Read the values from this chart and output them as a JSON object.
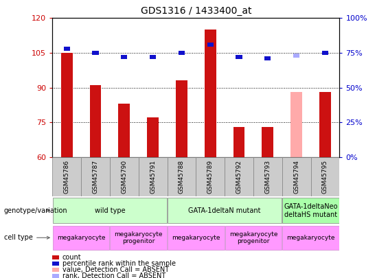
{
  "title": "GDS1316 / 1433400_at",
  "samples": [
    "GSM45786",
    "GSM45787",
    "GSM45790",
    "GSM45791",
    "GSM45788",
    "GSM45789",
    "GSM45792",
    "GSM45793",
    "GSM45794",
    "GSM45795"
  ],
  "count_values": [
    105,
    91,
    83,
    77,
    93,
    115,
    73,
    73,
    null,
    88
  ],
  "count_absent_values": [
    null,
    null,
    null,
    null,
    null,
    null,
    null,
    null,
    88,
    null
  ],
  "percentile_values": [
    78,
    75,
    72,
    72,
    75,
    81,
    72,
    71,
    null,
    75
  ],
  "percentile_absent_values": [
    null,
    null,
    null,
    null,
    null,
    null,
    null,
    null,
    73,
    null
  ],
  "ylim_left": [
    60,
    120
  ],
  "ylim_right": [
    0,
    100
  ],
  "yticks_left": [
    60,
    75,
    90,
    105,
    120
  ],
  "yticks_right": [
    0,
    25,
    50,
    75,
    100
  ],
  "bar_color_red": "#cc1111",
  "bar_color_absent": "#ffaaaa",
  "percentile_color": "#1111cc",
  "percentile_color_absent": "#aaaaff",
  "bar_width": 0.4,
  "geno_groups": [
    {
      "label": "wild type",
      "start": 0,
      "end": 4,
      "color": "#ccffcc"
    },
    {
      "label": "GATA-1deltaN mutant",
      "start": 4,
      "end": 8,
      "color": "#ccffcc"
    },
    {
      "label": "GATA-1deltaNeo\ndeltaHS mutant",
      "start": 8,
      "end": 10,
      "color": "#aaffaa"
    }
  ],
  "cell_groups": [
    {
      "label": "megakaryocyte",
      "start": 0,
      "end": 2,
      "color": "#ff99ff"
    },
    {
      "label": "megakaryocyte\nprogenitor",
      "start": 2,
      "end": 4,
      "color": "#ff99ff"
    },
    {
      "label": "megakaryocyte",
      "start": 4,
      "end": 6,
      "color": "#ff99ff"
    },
    {
      "label": "megakaryocyte\nprogenitor",
      "start": 6,
      "end": 8,
      "color": "#ff99ff"
    },
    {
      "label": "megakaryocyte",
      "start": 8,
      "end": 10,
      "color": "#ff99ff"
    }
  ],
  "legend_items": [
    {
      "label": "count",
      "color": "#cc1111"
    },
    {
      "label": "percentile rank within the sample",
      "color": "#1111cc"
    },
    {
      "label": "value, Detection Call = ABSENT",
      "color": "#ffaaaa"
    },
    {
      "label": "rank, Detection Call = ABSENT",
      "color": "#aaaaff"
    }
  ],
  "left_tick_color": "#cc0000",
  "right_tick_color": "#0000cc",
  "bg_color": "#e8e8e8",
  "xticklabels_bg": "#cccccc"
}
